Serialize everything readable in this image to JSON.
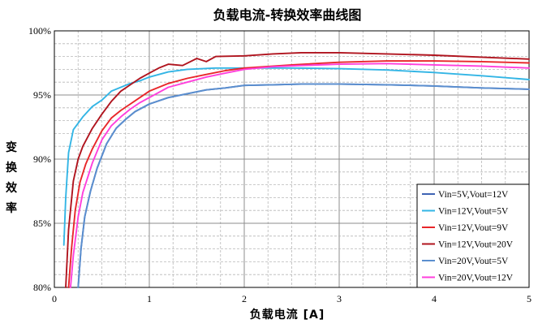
{
  "chart_data": {
    "type": "line",
    "title": "负载电流-转换效率曲线图",
    "xlabel": "负载电流 [A]",
    "ylabel": "变换效率",
    "xlim": [
      0,
      5
    ],
    "ylim": [
      80,
      100
    ],
    "x_ticks": [
      0,
      1,
      2,
      3,
      4,
      5
    ],
    "y_ticks": [
      80,
      85,
      90,
      95,
      100
    ],
    "y_tick_labels": [
      "80%",
      "85%",
      "90%",
      "95%",
      "100%"
    ],
    "grid": true,
    "legend_position": "bottom-right",
    "series": [
      {
        "name": "Vin=5V,Vout=12V",
        "color": "#3f64b4",
        "points": [
          [
            0.25,
            80
          ],
          [
            0.28,
            83
          ],
          [
            0.32,
            85.5
          ],
          [
            0.38,
            87.5
          ],
          [
            0.45,
            89.3
          ],
          [
            0.55,
            91.2
          ],
          [
            0.65,
            92.4
          ],
          [
            0.75,
            93.1
          ],
          [
            0.85,
            93.7
          ],
          [
            1.0,
            94.3
          ],
          [
            1.2,
            94.8
          ],
          [
            1.4,
            95.1
          ],
          [
            1.6,
            95.4
          ],
          [
            1.8,
            95.55
          ],
          [
            2.0,
            95.75
          ],
          [
            2.3,
            95.8
          ],
          [
            2.6,
            95.85
          ],
          [
            3.0,
            95.85
          ],
          [
            3.5,
            95.8
          ],
          [
            4.0,
            95.7
          ],
          [
            4.5,
            95.55
          ],
          [
            5.0,
            95.45
          ]
        ]
      },
      {
        "name": "Vin=12V,Vout=5V",
        "color": "#33b5e5",
        "points": [
          [
            0.1,
            83.3
          ],
          [
            0.12,
            87
          ],
          [
            0.15,
            90.5
          ],
          [
            0.2,
            92.3
          ],
          [
            0.3,
            93.3
          ],
          [
            0.4,
            94.1
          ],
          [
            0.5,
            94.6
          ],
          [
            0.6,
            95.3
          ],
          [
            0.7,
            95.6
          ],
          [
            0.8,
            95.9
          ],
          [
            0.9,
            96.1
          ],
          [
            1.0,
            96.4
          ],
          [
            1.2,
            96.8
          ],
          [
            1.4,
            97.0
          ],
          [
            1.7,
            97.1
          ],
          [
            2.0,
            97.1
          ],
          [
            2.5,
            97.1
          ],
          [
            3.0,
            97.05
          ],
          [
            3.5,
            96.95
          ],
          [
            4.0,
            96.75
          ],
          [
            4.5,
            96.5
          ],
          [
            5.0,
            96.2
          ]
        ]
      },
      {
        "name": "Vin=12V,Vout=9V",
        "color": "#e8262a",
        "points": [
          [
            0.15,
            80
          ],
          [
            0.18,
            83
          ],
          [
            0.22,
            86
          ],
          [
            0.27,
            88.2
          ],
          [
            0.33,
            89.6
          ],
          [
            0.4,
            90.8
          ],
          [
            0.5,
            92.2
          ],
          [
            0.6,
            93.2
          ],
          [
            0.7,
            93.8
          ],
          [
            0.8,
            94.3
          ],
          [
            0.9,
            94.8
          ],
          [
            1.0,
            95.3
          ],
          [
            1.2,
            95.9
          ],
          [
            1.4,
            96.3
          ],
          [
            1.6,
            96.6
          ],
          [
            1.8,
            96.9
          ],
          [
            2.0,
            97.1
          ],
          [
            2.5,
            97.35
          ],
          [
            3.0,
            97.55
          ],
          [
            3.5,
            97.65
          ],
          [
            4.0,
            97.65
          ],
          [
            4.5,
            97.6
          ],
          [
            5.0,
            97.5
          ]
        ]
      },
      {
        "name": "Vin=12V,Vout=20V",
        "color": "#b0141e",
        "points": [
          [
            0.12,
            80
          ],
          [
            0.15,
            84.5
          ],
          [
            0.2,
            88.3
          ],
          [
            0.25,
            90
          ],
          [
            0.3,
            91
          ],
          [
            0.4,
            92.4
          ],
          [
            0.5,
            93.5
          ],
          [
            0.6,
            94.5
          ],
          [
            0.7,
            95.3
          ],
          [
            0.8,
            95.8
          ],
          [
            0.9,
            96.3
          ],
          [
            1.0,
            96.7
          ],
          [
            1.1,
            97.1
          ],
          [
            1.2,
            97.4
          ],
          [
            1.35,
            97.3
          ],
          [
            1.5,
            97.85
          ],
          [
            1.6,
            97.6
          ],
          [
            1.7,
            98.0
          ],
          [
            2.0,
            98.05
          ],
          [
            2.3,
            98.2
          ],
          [
            2.6,
            98.3
          ],
          [
            3.0,
            98.3
          ],
          [
            3.5,
            98.2
          ],
          [
            4.0,
            98.1
          ],
          [
            4.5,
            97.95
          ],
          [
            5.0,
            97.8
          ]
        ]
      },
      {
        "name": "Vin=20V,Vout=5V",
        "color": "#5b8fcf",
        "points": [
          [
            0.25,
            80
          ],
          [
            0.28,
            83
          ],
          [
            0.32,
            85.5
          ],
          [
            0.38,
            87.5
          ],
          [
            0.45,
            89.3
          ],
          [
            0.55,
            91.2
          ],
          [
            0.65,
            92.4
          ],
          [
            0.75,
            93.1
          ],
          [
            0.85,
            93.7
          ],
          [
            1.0,
            94.3
          ],
          [
            1.2,
            94.8
          ],
          [
            1.4,
            95.1
          ],
          [
            1.6,
            95.4
          ],
          [
            1.8,
            95.55
          ],
          [
            2.0,
            95.75
          ],
          [
            2.3,
            95.8
          ],
          [
            2.6,
            95.85
          ],
          [
            3.0,
            95.85
          ],
          [
            3.5,
            95.8
          ],
          [
            4.0,
            95.7
          ],
          [
            4.5,
            95.55
          ],
          [
            5.0,
            95.45
          ]
        ]
      },
      {
        "name": "Vin=20V,Vout=12V",
        "color": "#ff3fdc",
        "points": [
          [
            0.17,
            80
          ],
          [
            0.2,
            82.5
          ],
          [
            0.25,
            85.5
          ],
          [
            0.3,
            87.4
          ],
          [
            0.4,
            89.7
          ],
          [
            0.5,
            91.5
          ],
          [
            0.6,
            92.6
          ],
          [
            0.7,
            93.3
          ],
          [
            0.8,
            93.9
          ],
          [
            0.9,
            94.4
          ],
          [
            1.0,
            94.8
          ],
          [
            1.2,
            95.6
          ],
          [
            1.4,
            96.0
          ],
          [
            1.6,
            96.4
          ],
          [
            1.8,
            96.7
          ],
          [
            2.0,
            97.0
          ],
          [
            2.3,
            97.2
          ],
          [
            2.6,
            97.3
          ],
          [
            3.0,
            97.4
          ],
          [
            3.5,
            97.45
          ],
          [
            4.0,
            97.35
          ],
          [
            4.5,
            97.25
          ],
          [
            5.0,
            97.1
          ]
        ]
      }
    ]
  }
}
